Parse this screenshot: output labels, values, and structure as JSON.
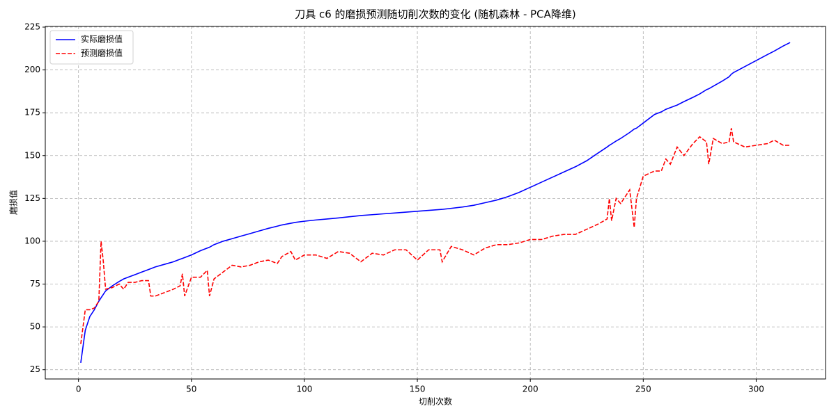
{
  "chart_data": {
    "type": "line",
    "title": "刀具 c6 的磨损预测随切削次数的变化 (随机森林 - PCA降维)",
    "x_label": "切削次数",
    "y_label": "磨损值",
    "x": [
      1,
      3,
      5,
      7,
      9,
      10,
      11,
      12,
      15,
      18,
      20,
      22,
      25,
      28,
      31,
      32,
      34,
      38,
      42,
      45,
      46,
      47,
      50,
      54,
      57,
      58,
      60,
      64,
      68,
      72,
      76,
      80,
      84,
      88,
      90,
      94,
      96,
      100,
      105,
      110,
      115,
      120,
      125,
      130,
      135,
      140,
      145,
      150,
      155,
      160,
      161,
      165,
      170,
      175,
      180,
      185,
      190,
      195,
      200,
      205,
      210,
      215,
      220,
      225,
      230,
      234,
      235,
      236,
      238,
      240,
      244,
      246,
      247,
      250,
      255,
      258,
      260,
      262,
      265,
      268,
      272,
      275,
      278,
      279,
      281,
      285,
      288,
      289,
      290,
      295,
      300,
      305,
      308,
      312,
      315
    ],
    "series": [
      {
        "name": "实际磨损值",
        "color": "#0000ff",
        "linestyle": "solid",
        "values": [
          29,
          48,
          56,
          60,
          65,
          67,
          69,
          71,
          74,
          76.5,
          78,
          79,
          80.5,
          82,
          83.5,
          84,
          85,
          86.5,
          88,
          89.5,
          90,
          90.5,
          92,
          94.5,
          96,
          96.5,
          98,
          100,
          101.5,
          103,
          104.5,
          106,
          107.5,
          108.8,
          109.5,
          110.5,
          111,
          111.7,
          112.4,
          113,
          113.6,
          114.3,
          115,
          115.5,
          116,
          116.5,
          117,
          117.5,
          118,
          118.5,
          118.6,
          119.2,
          120,
          121,
          122.5,
          124,
          126,
          128.5,
          131.5,
          134.5,
          137.5,
          140.5,
          143.5,
          147,
          151.5,
          155,
          156,
          156.8,
          158.5,
          160,
          163.5,
          165.5,
          166,
          169,
          174,
          175.5,
          177,
          178,
          179.5,
          181.5,
          184,
          186,
          188.5,
          189,
          190.5,
          193.5,
          196,
          197.5,
          198.5,
          202,
          205.5,
          209,
          211,
          214,
          216
        ]
      },
      {
        "name": "预测磨损值",
        "color": "#ff0000",
        "linestyle": "dashed",
        "values": [
          40,
          60,
          60,
          61,
          65,
          100,
          88,
          72,
          73,
          75,
          72,
          76,
          76,
          77,
          77,
          68,
          68,
          70,
          72,
          74,
          81,
          68,
          79,
          79,
          83,
          68,
          78,
          82,
          86,
          85,
          86,
          88,
          89,
          87,
          91,
          94,
          89,
          92,
          92,
          90,
          94,
          93,
          88,
          93,
          92,
          95,
          95,
          89,
          95,
          95,
          88,
          97,
          95,
          92,
          96,
          98,
          98,
          99,
          101,
          101,
          103,
          104,
          104,
          107,
          110,
          113,
          125,
          112,
          125,
          122,
          130,
          108,
          125,
          138,
          141,
          141,
          148,
          145,
          155,
          150,
          157,
          161,
          158,
          145,
          160,
          157,
          158,
          166,
          158,
          155,
          156,
          157,
          159,
          156,
          156
        ]
      }
    ],
    "xlim": [
      -14.7,
      330.7
    ],
    "ylim": [
      19.6,
      225.4
    ],
    "xticks": [
      0,
      50,
      100,
      150,
      200,
      250,
      300
    ],
    "yticks": [
      25,
      50,
      75,
      100,
      125,
      150,
      175,
      200,
      225
    ],
    "grid": true,
    "legend": "upper left"
  }
}
